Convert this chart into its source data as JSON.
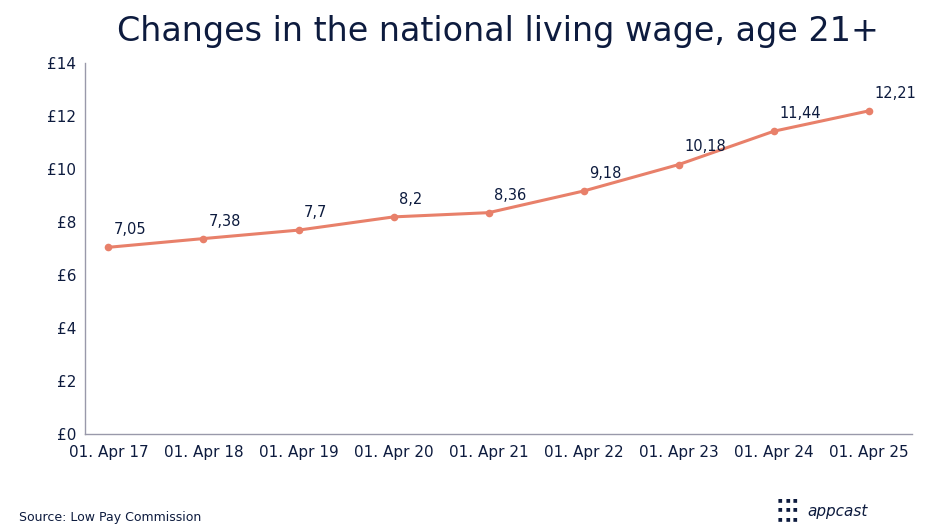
{
  "title": "Changes in the national living wage, age 21+",
  "x_labels": [
    "01. Apr 17",
    "01. Apr 18",
    "01. Apr 19",
    "01. Apr 20",
    "01. Apr 21",
    "01. Apr 22",
    "01. Apr 23",
    "01. Apr 24",
    "01. Apr 25"
  ],
  "x_values": [
    0,
    1,
    2,
    3,
    4,
    5,
    6,
    7,
    8
  ],
  "y_values": [
    7.05,
    7.38,
    7.7,
    8.2,
    8.36,
    9.18,
    10.18,
    11.44,
    12.21
  ],
  "point_labels": [
    "7,05",
    "7,38",
    "7,7",
    "8,2",
    "8,36",
    "9,18",
    "10,18",
    "11,44",
    "12,21"
  ],
  "line_color": "#E8806A",
  "marker_color": "#E8806A",
  "title_color": "#0d1b3e",
  "label_color": "#0d1b3e",
  "tick_color": "#0d1b3e",
  "spine_color": "#9999aa",
  "source_text": "Source: Low Pay Commission",
  "ylim": [
    0,
    14
  ],
  "yticks": [
    0,
    2,
    4,
    6,
    8,
    10,
    12,
    14
  ],
  "ytick_labels": [
    "£0",
    "£2",
    "£4",
    "£6",
    "£8",
    "£10",
    "£12",
    "£14"
  ],
  "background_color": "#ffffff",
  "title_fontsize": 24,
  "tick_fontsize": 11,
  "annotation_fontsize": 10.5,
  "source_fontsize": 9,
  "label_offsets_x": [
    0.06,
    0.06,
    0.06,
    0.06,
    0.06,
    0.06,
    0.06,
    0.06,
    0.06
  ],
  "label_offsets_y": [
    0.38,
    0.38,
    0.38,
    0.38,
    0.38,
    0.38,
    0.38,
    0.38,
    0.38
  ]
}
